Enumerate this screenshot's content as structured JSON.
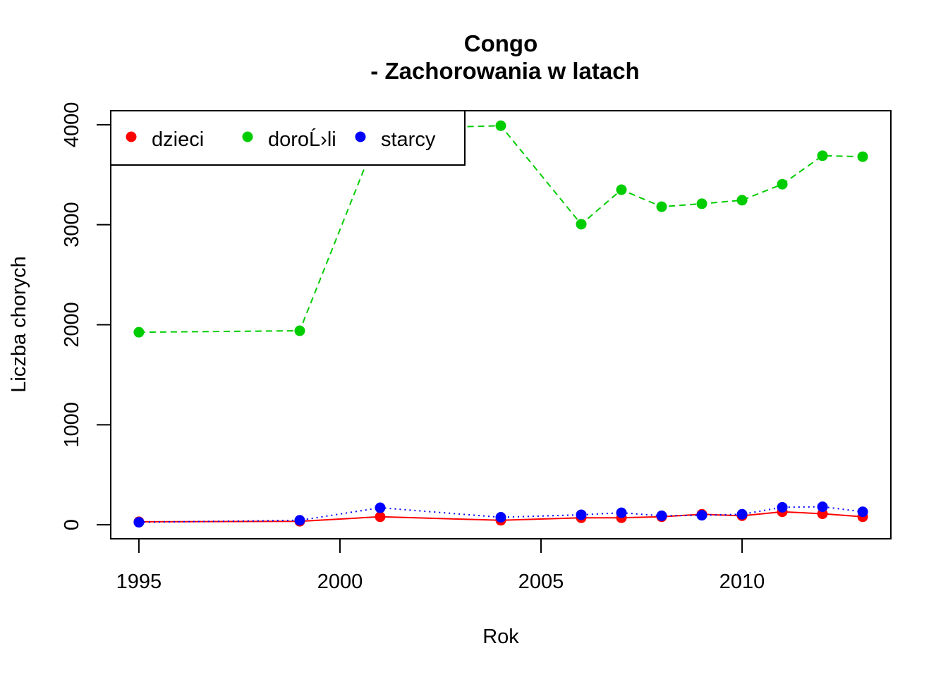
{
  "chart_data": {
    "type": "line",
    "title": "Congo",
    "subtitle": "- Zachorowania w latach",
    "xlabel": "Rok",
    "ylabel": "Liczba chorych",
    "xlim": [
      1994.3,
      2013.7
    ],
    "ylim": [
      -140,
      4140
    ],
    "x_ticks": [
      1995,
      2000,
      2005,
      2010
    ],
    "y_ticks": [
      0,
      1000,
      2000,
      3000,
      4000
    ],
    "grid": false,
    "legend": {
      "position": "top-left",
      "columns": 3
    },
    "x": [
      1995,
      1999,
      2001,
      2004,
      2006,
      2007,
      2008,
      2009,
      2010,
      2011,
      2012,
      2013
    ],
    "series": [
      {
        "name": "dzieci",
        "color": "#ff0000",
        "line_style": "solid",
        "values": [
          30,
          35,
          80,
          45,
          70,
          70,
          80,
          105,
          90,
          130,
          110,
          80
        ]
      },
      {
        "name": "doroĹ›li",
        "color": "#00cd00",
        "line_style": "dashed",
        "values": [
          1925,
          1940,
          3960,
          3990,
          3005,
          3350,
          3180,
          3210,
          3245,
          3405,
          3690,
          3680
        ]
      },
      {
        "name": "starcy",
        "color": "#0000ff",
        "line_style": "dotted",
        "values": [
          25,
          45,
          170,
          75,
          100,
          120,
          90,
          95,
          105,
          175,
          180,
          130
        ]
      }
    ]
  }
}
